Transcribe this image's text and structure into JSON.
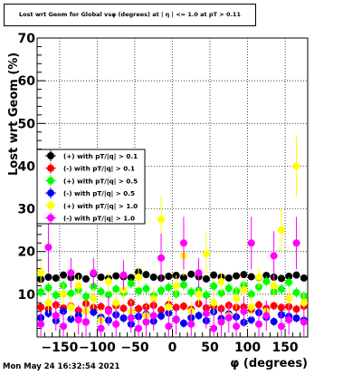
{
  "title": "Lost wrt Geom for Global vsφ (degrees) at | η | <= 1.0 at pT > 0.11",
  "footer": "Mon May 24 16:32:54 2021",
  "chart_data": {
    "type": "scatter",
    "title": "Lost wrt Geom for Global vsφ (degrees) at | η | <= 1.0 at pT > 0.11",
    "xlabel": "φ (degrees)",
    "ylabel": "Lost wrt Geom (%)",
    "xlim": [
      -180,
      180
    ],
    "ylim": [
      0,
      70
    ],
    "xticks": [
      -150,
      -100,
      -50,
      0,
      50,
      100,
      150
    ],
    "xtick_labels": [
      "−150",
      "−100",
      "−50",
      "0",
      "50",
      "100",
      "150"
    ],
    "yticks": [
      10,
      20,
      30,
      40,
      50,
      60,
      70
    ],
    "grid": true,
    "legend_position": "middle-left",
    "series": [
      {
        "name": "(+) with pT/|q| > 0.1",
        "color": "#000000",
        "x": [
          -175,
          -165,
          -155,
          -145,
          -135,
          -125,
          -115,
          -105,
          -95,
          -85,
          -75,
          -65,
          -55,
          -45,
          -35,
          -25,
          -15,
          -5,
          5,
          15,
          25,
          35,
          45,
          55,
          65,
          75,
          85,
          95,
          105,
          115,
          125,
          135,
          145,
          155,
          165,
          175
        ],
        "y": [
          13.5,
          14.0,
          13.8,
          14.5,
          13.9,
          14.2,
          13.6,
          14.8,
          14.0,
          13.7,
          14.3,
          14.1,
          13.9,
          15.2,
          14.6,
          14.0,
          13.8,
          14.2,
          14.4,
          13.9,
          14.7,
          14.1,
          13.6,
          14.5,
          14.0,
          13.8,
          14.3,
          14.6,
          14.1,
          13.9,
          14.4,
          14.0,
          13.7,
          14.2,
          14.5,
          13.8
        ]
      },
      {
        "name": "(-) with pT/|q| > 0.1",
        "color": "#ff0000",
        "x": [
          -175,
          -165,
          -155,
          -145,
          -135,
          -125,
          -115,
          -105,
          -95,
          -85,
          -75,
          -65,
          -55,
          -45,
          -35,
          -25,
          -15,
          -5,
          5,
          15,
          25,
          35,
          45,
          55,
          65,
          75,
          85,
          95,
          105,
          115,
          125,
          135,
          145,
          155,
          165,
          175
        ],
        "y": [
          7.0,
          6.5,
          7.5,
          6.8,
          7.2,
          6.2,
          7.8,
          6.9,
          7.1,
          6.4,
          7.3,
          6.7,
          8.0,
          6.6,
          7.0,
          7.4,
          6.3,
          7.6,
          6.9,
          7.2,
          6.5,
          7.8,
          6.8,
          7.1,
          6.6,
          7.4,
          6.9,
          7.0,
          6.4,
          7.5,
          6.7,
          7.3,
          6.9,
          7.1,
          6.5,
          7.2
        ]
      },
      {
        "name": "(+) with pT/|q| > 0.5",
        "color": "#00ff00",
        "x": [
          -175,
          -165,
          -155,
          -145,
          -135,
          -125,
          -115,
          -105,
          -95,
          -85,
          -75,
          -65,
          -55,
          -45,
          -35,
          -25,
          -15,
          -5,
          5,
          15,
          25,
          35,
          45,
          55,
          65,
          75,
          85,
          95,
          105,
          115,
          125,
          135,
          145,
          155,
          165,
          175
        ],
        "y": [
          10.5,
          11.5,
          9.8,
          12.0,
          10.2,
          11.0,
          9.5,
          11.8,
          10.6,
          9.9,
          11.2,
          10.4,
          12.5,
          10.8,
          11.3,
          9.7,
          10.9,
          11.6,
          10.1,
          12.2,
          10.5,
          11.0,
          9.8,
          11.9,
          10.3,
          11.4,
          10.7,
          12.1,
          10.0,
          11.7,
          13.0,
          10.6,
          11.2,
          12.8,
          10.4,
          9.6
        ]
      },
      {
        "name": "(-) with pT/|q| > 0.5",
        "color": "#0000ff",
        "x": [
          -175,
          -165,
          -155,
          -145,
          -135,
          -125,
          -115,
          -105,
          -95,
          -85,
          -75,
          -65,
          -55,
          -45,
          -35,
          -25,
          -15,
          -5,
          5,
          15,
          25,
          35,
          45,
          55,
          65,
          75,
          85,
          95,
          105,
          115,
          125,
          135,
          145,
          155,
          165,
          175
        ],
        "y": [
          4.5,
          5.5,
          3.8,
          6.0,
          4.2,
          5.0,
          3.5,
          5.8,
          4.6,
          3.9,
          5.2,
          4.4,
          3.0,
          4.8,
          5.3,
          3.7,
          4.9,
          5.6,
          4.1,
          3.2,
          4.5,
          5.0,
          3.8,
          5.9,
          4.3,
          5.4,
          4.7,
          3.4,
          4.0,
          5.7,
          4.6,
          3.6,
          5.2,
          4.8,
          4.4,
          3.9
        ]
      },
      {
        "name": "(+) with pT/|q| > 1.0",
        "color": "#ffff00",
        "x": [
          -175,
          -165,
          -155,
          -145,
          -135,
          -125,
          -115,
          -105,
          -95,
          -85,
          -75,
          -65,
          -55,
          -45,
          -35,
          -25,
          -15,
          -5,
          5,
          15,
          25,
          35,
          45,
          55,
          65,
          75,
          85,
          95,
          105,
          115,
          125,
          135,
          145,
          155,
          165,
          175
        ],
        "y": [
          15.0,
          8.0,
          5.0,
          10.0,
          7.0,
          12.0,
          6.0,
          9.0,
          4.0,
          13.0,
          8.0,
          11.0,
          6.0,
          14.0,
          5.0,
          9.0,
          27.5,
          7.0,
          12.0,
          19.0,
          6.0,
          10.0,
          19.5,
          8.0,
          13.0,
          5.0,
          9.0,
          11.0,
          7.0,
          14.0,
          6.0,
          12.0,
          25.0,
          9.0,
          40.0,
          8.0
        ]
      },
      {
        "name": "(-) with pT/|q| > 1.0",
        "color": "#ff00ff",
        "x": [
          -175,
          -165,
          -155,
          -145,
          -135,
          -125,
          -115,
          -105,
          -95,
          -85,
          -75,
          -65,
          -55,
          -45,
          -35,
          -25,
          -15,
          -5,
          5,
          15,
          25,
          35,
          45,
          55,
          65,
          75,
          85,
          95,
          105,
          115,
          125,
          135,
          145,
          155,
          165,
          175
        ],
        "y": [
          3.0,
          21.0,
          5.0,
          2.5,
          15.0,
          4.0,
          3.5,
          15.0,
          2.0,
          6.0,
          3.0,
          14.5,
          4.5,
          2.0,
          3.5,
          5.0,
          18.5,
          2.5,
          4.0,
          22.0,
          3.0,
          15.0,
          5.5,
          2.0,
          3.5,
          4.5,
          2.5,
          6.0,
          22.0,
          3.0,
          5.0,
          19.0,
          2.5,
          4.0,
          22.0,
          3.5
        ]
      }
    ]
  }
}
